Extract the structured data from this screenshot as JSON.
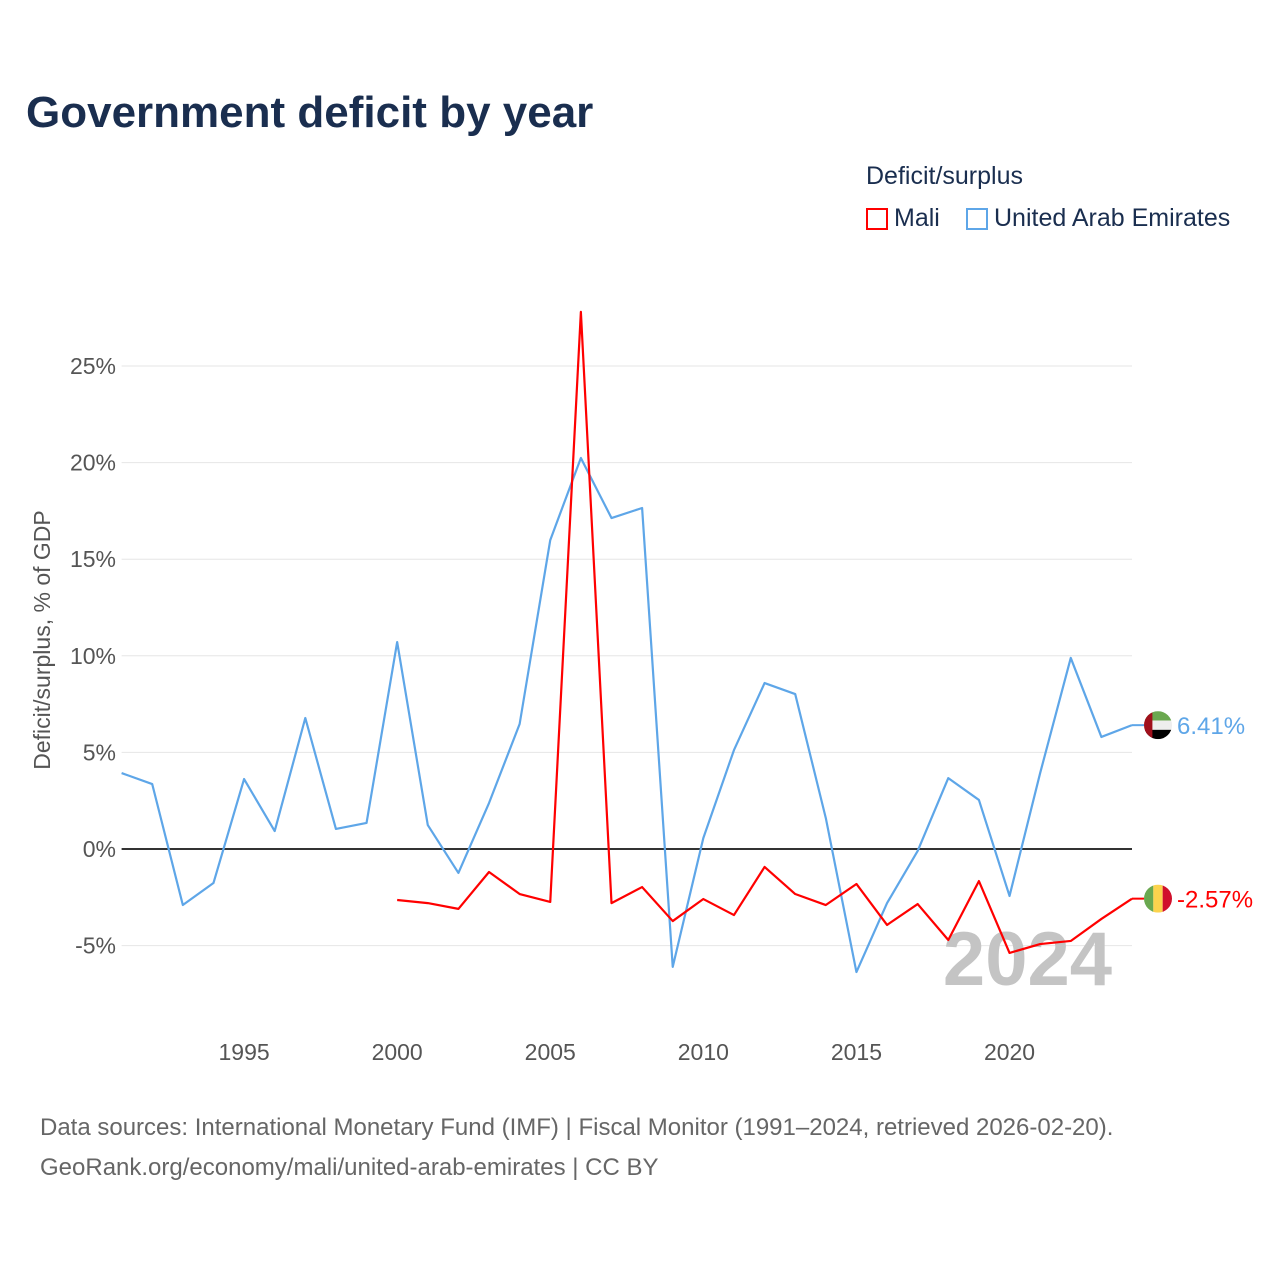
{
  "chart_data": {
    "type": "line",
    "title": "Government deficit by year",
    "legend_title": "Deficit/surplus",
    "legend_position": "top-right",
    "ylabel": "Deficit/surplus, % of GDP",
    "xlabel": "",
    "xlim": [
      1991,
      2024
    ],
    "ylim": [
      -7.5,
      29
    ],
    "x_ticks": [
      1995,
      2000,
      2005,
      2010,
      2015,
      2020
    ],
    "y_ticks": [
      -5,
      0,
      5,
      10,
      15,
      20,
      25
    ],
    "y_tick_labels": [
      "-5%",
      "0%",
      "5%",
      "10%",
      "15%",
      "20%",
      "25%"
    ],
    "grid": true,
    "year_watermark": "2024",
    "series": [
      {
        "name": "Mali",
        "color": "#ff0000",
        "end_label": "-2.57%",
        "flag": "mali-flag",
        "x": [
          2000,
          2001,
          2002,
          2003,
          2004,
          2005,
          2006,
          2007,
          2008,
          2009,
          2010,
          2011,
          2012,
          2013,
          2014,
          2015,
          2016,
          2017,
          2018,
          2019,
          2020,
          2021,
          2022,
          2023,
          2024
        ],
        "values": [
          -2.64,
          -2.8,
          -3.1,
          -1.19,
          -2.33,
          -2.74,
          27.8,
          -2.8,
          -1.97,
          -3.73,
          -2.59,
          -3.42,
          -0.93,
          -2.33,
          -2.9,
          -1.81,
          -3.93,
          -2.85,
          -4.71,
          -1.66,
          -5.38,
          -4.92,
          -4.76,
          -3.62,
          -2.57
        ]
      },
      {
        "name": "United Arab Emirates",
        "color": "#5ea6e8",
        "end_label": "6.41%",
        "flag": "uae-flag",
        "x": [
          1991,
          1992,
          1993,
          1994,
          1995,
          1996,
          1997,
          1998,
          1999,
          2000,
          2001,
          2002,
          2003,
          2004,
          2005,
          2006,
          2007,
          2008,
          2009,
          2010,
          2011,
          2012,
          2013,
          2014,
          2015,
          2016,
          2017,
          2018,
          2019,
          2020,
          2021,
          2022,
          2023,
          2024
        ],
        "values": [
          3.93,
          3.36,
          -2.9,
          -1.76,
          3.62,
          0.93,
          6.78,
          1.04,
          1.35,
          10.71,
          1.24,
          -1.24,
          2.38,
          6.47,
          15.99,
          20.24,
          17.13,
          17.65,
          -6.1,
          0.57,
          5.12,
          8.59,
          8.02,
          1.6,
          -6.37,
          -2.8,
          -0.1,
          3.67,
          2.54,
          -2.43,
          3.93,
          9.89,
          5.8,
          6.41
        ]
      }
    ]
  },
  "source": {
    "line1": "Data sources: International Monetary Fund (IMF) | Fiscal Monitor (1991–2024, retrieved 2026-02-20).",
    "line2": "GeoRank.org/economy/mali/united-arab-emirates | CC BY"
  }
}
